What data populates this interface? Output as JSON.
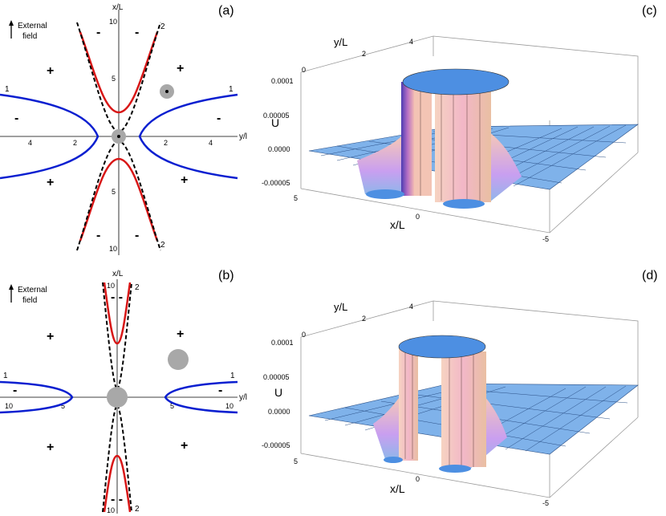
{
  "panel_a": {
    "label": "(a)",
    "external_field": [
      "External",
      "field"
    ],
    "axis_x": "x/L",
    "axis_y": "y/l",
    "ticks_vertical": [
      "10",
      "5",
      "5",
      "10"
    ],
    "ticks_horizontal": [
      "4",
      "2",
      "2",
      "4"
    ],
    "curve_labels": [
      "1",
      "1",
      "2",
      "2"
    ],
    "signs": [
      "-",
      "-",
      "+",
      "+",
      "+",
      "+",
      "-",
      "-",
      "-",
      "-"
    ]
  },
  "panel_b": {
    "label": "(b)",
    "external_field": [
      "External",
      "field"
    ],
    "axis_x": "x/L",
    "axis_y": "y/l",
    "ticks_vertical": [
      "10",
      "10"
    ],
    "ticks_horizontal": [
      "10",
      "5",
      "5",
      "10"
    ],
    "curve_labels": [
      "1",
      "1",
      "2",
      "2"
    ],
    "signs": [
      "+",
      "+",
      "+",
      "+",
      "-",
      "-",
      "- -",
      "- -"
    ]
  },
  "panel_c": {
    "label": "(c)",
    "axis_y": "y/L",
    "axis_x": "x/L",
    "axis_z": "U",
    "y_ticks": [
      "0",
      "2",
      "4"
    ],
    "z_ticks": [
      "0.0001",
      "0.00005",
      "0.0000",
      "-0.00005"
    ],
    "x_ticks": [
      "5",
      "0",
      "-5"
    ]
  },
  "panel_d": {
    "label": "(d)",
    "axis_y": "y/L",
    "axis_x": "x/L",
    "axis_z": "U",
    "y_ticks": [
      "0",
      "2",
      "4"
    ],
    "z_ticks": [
      "0.0001",
      "0.00005",
      "0.0000",
      "-0.00005"
    ],
    "x_ticks": [
      "5",
      "0",
      "-5"
    ]
  },
  "colors": {
    "blue_curve": "#0a1fd0",
    "red_curve": "#d81616",
    "dashed": "#000000",
    "particle": "#a8a8a8",
    "surface": "#7fb2ea",
    "wall": "#f3c4b4"
  }
}
